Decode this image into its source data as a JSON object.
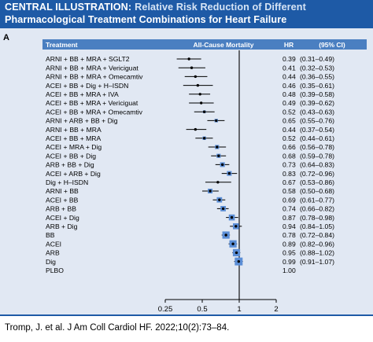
{
  "header": {
    "label": "CENTRAL ILLUSTRATION:",
    "title_line1": "Relative Risk Reduction of Different",
    "title_line2": "Pharmacological Treatment Combinations for Heart Failure"
  },
  "panel": {
    "letter": "A"
  },
  "footer": {
    "citation": "Tromp, J. et al. J Am Coll Cardiol HF. 2022;10(2):73–84."
  },
  "colors": {
    "header_bg": "#1e5aa6",
    "table_header_bg": "#4a7fc1",
    "panel_bg": "#e1e8f3",
    "marker_box": "#5b8ed6",
    "marker_dot": "#000000"
  },
  "chart_data": {
    "type": "forest",
    "columns": {
      "treatment": "Treatment",
      "axis": "All-Cause Mortality",
      "hr": "HR",
      "ci": "(95% CI)"
    },
    "x_axis": {
      "scale": "log",
      "ticks": [
        0.25,
        0.5,
        1,
        2
      ],
      "tick_labels": [
        "0.25",
        "0.5",
        "1",
        "2"
      ],
      "range": [
        0.25,
        2
      ],
      "reference_line": 1
    },
    "rows": [
      {
        "treatment": "ARNI + BB + MRA + SGLT2",
        "hr": 0.39,
        "lo": 0.31,
        "hi": 0.49,
        "hr_text": "0.39",
        "ci_text": "(0.31–0.49)",
        "weight": 0.1
      },
      {
        "treatment": "ARNI + BB + MRA + Vericiguat",
        "hr": 0.41,
        "lo": 0.32,
        "hi": 0.53,
        "hr_text": "0.41",
        "ci_text": "(0.32–0.53)",
        "weight": 0.1
      },
      {
        "treatment": "ARNI + BB + MRA + Omecamtiv",
        "hr": 0.44,
        "lo": 0.36,
        "hi": 0.55,
        "hr_text": "0.44",
        "ci_text": "(0.36–0.55)",
        "weight": 0.1
      },
      {
        "treatment": "ACEI + BB + Dig + H–ISDN",
        "hr": 0.46,
        "lo": 0.35,
        "hi": 0.61,
        "hr_text": "0.46",
        "ci_text": "(0.35–0.61)",
        "weight": 0.1
      },
      {
        "treatment": "ACEI + BB + MRA + IVA",
        "hr": 0.48,
        "lo": 0.39,
        "hi": 0.58,
        "hr_text": "0.48",
        "ci_text": "(0.39–0.58)",
        "weight": 0.1
      },
      {
        "treatment": "ACEI + BB + MRA + Vericiguat",
        "hr": 0.49,
        "lo": 0.39,
        "hi": 0.62,
        "hr_text": "0.49",
        "ci_text": "(0.39–0.62)",
        "weight": 0.1
      },
      {
        "treatment": "ACEI + BB + MRA + Omecamtiv",
        "hr": 0.52,
        "lo": 0.43,
        "hi": 0.63,
        "hr_text": "0.52",
        "ci_text": "(0.43–0.63)",
        "weight": 0.2
      },
      {
        "treatment": "ARNI + ARB + BB + Dig",
        "hr": 0.65,
        "lo": 0.55,
        "hi": 0.76,
        "hr_text": "0.65",
        "ci_text": "(0.55–0.76)",
        "weight": 0.3
      },
      {
        "treatment": "ARNI + BB + MRA",
        "hr": 0.44,
        "lo": 0.37,
        "hi": 0.54,
        "hr_text": "0.44",
        "ci_text": "(0.37–0.54)",
        "weight": 0.1
      },
      {
        "treatment": "ACEI + BB + MRA",
        "hr": 0.52,
        "lo": 0.44,
        "hi": 0.61,
        "hr_text": "0.52",
        "ci_text": "(0.44–0.61)",
        "weight": 0.3
      },
      {
        "treatment": "ACEI + MRA + Dig",
        "hr": 0.66,
        "lo": 0.56,
        "hi": 0.78,
        "hr_text": "0.66",
        "ci_text": "(0.56–0.78)",
        "weight": 0.4
      },
      {
        "treatment": "ACEI + BB + Dig",
        "hr": 0.68,
        "lo": 0.59,
        "hi": 0.78,
        "hr_text": "0.68",
        "ci_text": "(0.59–0.78)",
        "weight": 0.4
      },
      {
        "treatment": "ARB + BB + Dig",
        "hr": 0.73,
        "lo": 0.64,
        "hi": 0.83,
        "hr_text": "0.73",
        "ci_text": "(0.64–0.83)",
        "weight": 0.5
      },
      {
        "treatment": "ACEI + ARB + Dig",
        "hr": 0.83,
        "lo": 0.72,
        "hi": 0.96,
        "hr_text": "0.83",
        "ci_text": "(0.72–0.96)",
        "weight": 0.5
      },
      {
        "treatment": "Dig + H–ISDN",
        "hr": 0.67,
        "lo": 0.53,
        "hi": 0.86,
        "hr_text": "0.67",
        "ci_text": "(0.53–0.86)",
        "weight": 0.1
      },
      {
        "treatment": "ARNI + BB",
        "hr": 0.58,
        "lo": 0.5,
        "hi": 0.68,
        "hr_text": "0.58",
        "ci_text": "(0.50–0.68)",
        "weight": 0.5
      },
      {
        "treatment": "ACEI + BB",
        "hr": 0.69,
        "lo": 0.61,
        "hi": 0.77,
        "hr_text": "0.69",
        "ci_text": "(0.61–0.77)",
        "weight": 0.6
      },
      {
        "treatment": "ARB + BB",
        "hr": 0.74,
        "lo": 0.66,
        "hi": 0.82,
        "hr_text": "0.74",
        "ci_text": "(0.66–0.82)",
        "weight": 0.6
      },
      {
        "treatment": "ACEI + Dig",
        "hr": 0.87,
        "lo": 0.78,
        "hi": 0.98,
        "hr_text": "0.87",
        "ci_text": "(0.78–0.98)",
        "weight": 0.7
      },
      {
        "treatment": "ARB + Dig",
        "hr": 0.94,
        "lo": 0.84,
        "hi": 1.05,
        "hr_text": "0.94",
        "ci_text": "(0.84–1.05)",
        "weight": 0.7
      },
      {
        "treatment": "BB",
        "hr": 0.78,
        "lo": 0.72,
        "hi": 0.84,
        "hr_text": "0.78",
        "ci_text": "(0.72–0.84)",
        "weight": 0.9
      },
      {
        "treatment": "ACEI",
        "hr": 0.89,
        "lo": 0.82,
        "hi": 0.96,
        "hr_text": "0.89",
        "ci_text": "(0.82–0.96)",
        "weight": 0.9
      },
      {
        "treatment": "ARB",
        "hr": 0.95,
        "lo": 0.88,
        "hi": 1.02,
        "hr_text": "0.95",
        "ci_text": "(0.88–1.02)",
        "weight": 0.9
      },
      {
        "treatment": "Dig",
        "hr": 0.99,
        "lo": 0.91,
        "hi": 1.07,
        "hr_text": "0.99",
        "ci_text": "(0.91–1.07)",
        "weight": 1.0
      },
      {
        "treatment": "PLBO",
        "hr": 1.0,
        "lo": null,
        "hi": null,
        "hr_text": "1.00",
        "ci_text": "",
        "weight": 0
      }
    ]
  }
}
